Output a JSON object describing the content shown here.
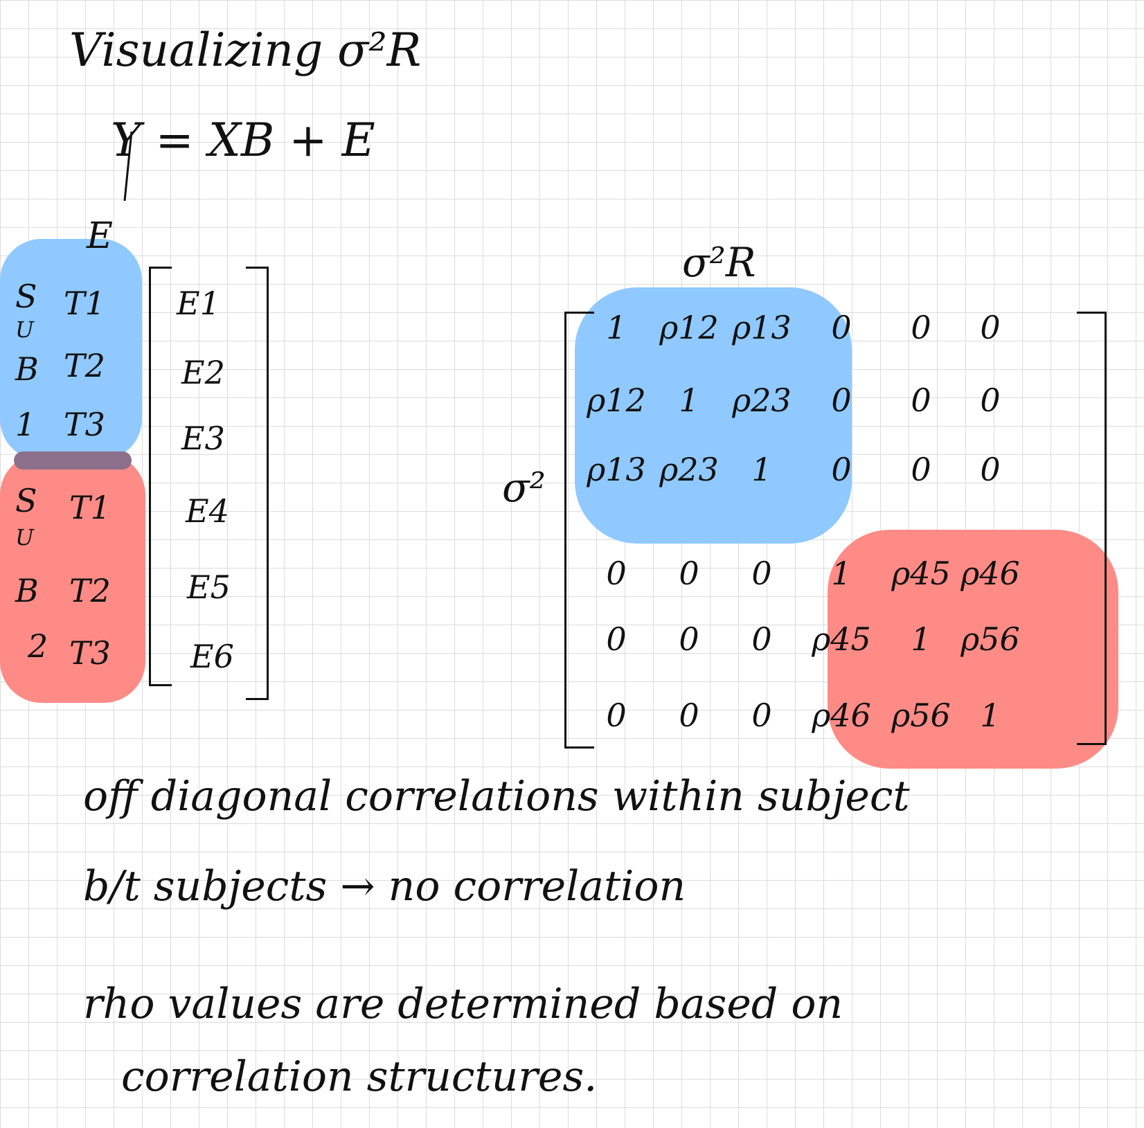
{
  "title": "Visualizing σ²R",
  "equation": "Y = XB + E",
  "epsilon_label": "E",
  "subjects": [
    {
      "label_letters": [
        "S",
        "U",
        "B",
        "1"
      ],
      "times": [
        "T1",
        "T2",
        "T3"
      ],
      "color": "#8fc9ff"
    },
    {
      "label_letters": [
        "S",
        "U",
        "B",
        "2"
      ],
      "times": [
        "T1",
        "T2",
        "T3"
      ],
      "color": "#ff8b86"
    }
  ],
  "epsilon_vector": [
    "E1",
    "E2",
    "E3",
    "E4",
    "E5",
    "E6"
  ],
  "matrix_label": "σ²R",
  "sigma_prefix": "σ²",
  "matrix": [
    [
      "1",
      "ρ12",
      "ρ13",
      "0",
      "0",
      "0"
    ],
    [
      "ρ12",
      "1",
      "ρ23",
      "0",
      "0",
      "0"
    ],
    [
      "ρ13",
      "ρ23",
      "1",
      "0",
      "0",
      "0"
    ],
    [
      "0",
      "0",
      "0",
      "1",
      "ρ45",
      "ρ46"
    ],
    [
      "0",
      "0",
      "0",
      "ρ45",
      "1",
      "ρ56"
    ],
    [
      "0",
      "0",
      "0",
      "ρ46",
      "ρ56",
      "1"
    ]
  ],
  "notes": {
    "line1": "off diagonal correlations within subject",
    "line2": "b/t subjects → no correlation",
    "line3": "rho values are determined based on",
    "line4": "correlation structures."
  },
  "colors": {
    "subject1": "#8fc9ff",
    "subject2": "#ff8b86",
    "ink": "#111111",
    "grid": "#dcdcdc"
  }
}
